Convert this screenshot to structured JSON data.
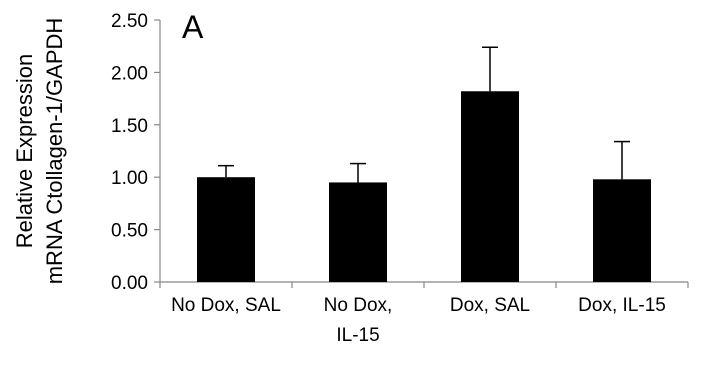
{
  "chart_data": {
    "type": "bar",
    "panel_label": "A",
    "ylabel_lines": [
      "Relative Expression",
      "mRNA Ctollagen-1/GAPDH"
    ],
    "categories": [
      [
        "No Dox, SAL"
      ],
      [
        "No Dox,",
        "IL-15"
      ],
      [
        "Dox, SAL"
      ],
      [
        "Dox, IL-15"
      ]
    ],
    "values": [
      1.0,
      0.95,
      1.82,
      0.98
    ],
    "errors": [
      0.11,
      0.18,
      0.42,
      0.36
    ],
    "ylim": [
      0,
      2.5
    ],
    "yticks": [
      0,
      0.5,
      1.0,
      1.5,
      2.0,
      2.5
    ],
    "ytick_labels": [
      "0.00",
      "0.50",
      "1.00",
      "1.50",
      "2.00",
      "2.50"
    ],
    "bar_color": "#000000",
    "grid": false,
    "legend": "none"
  }
}
